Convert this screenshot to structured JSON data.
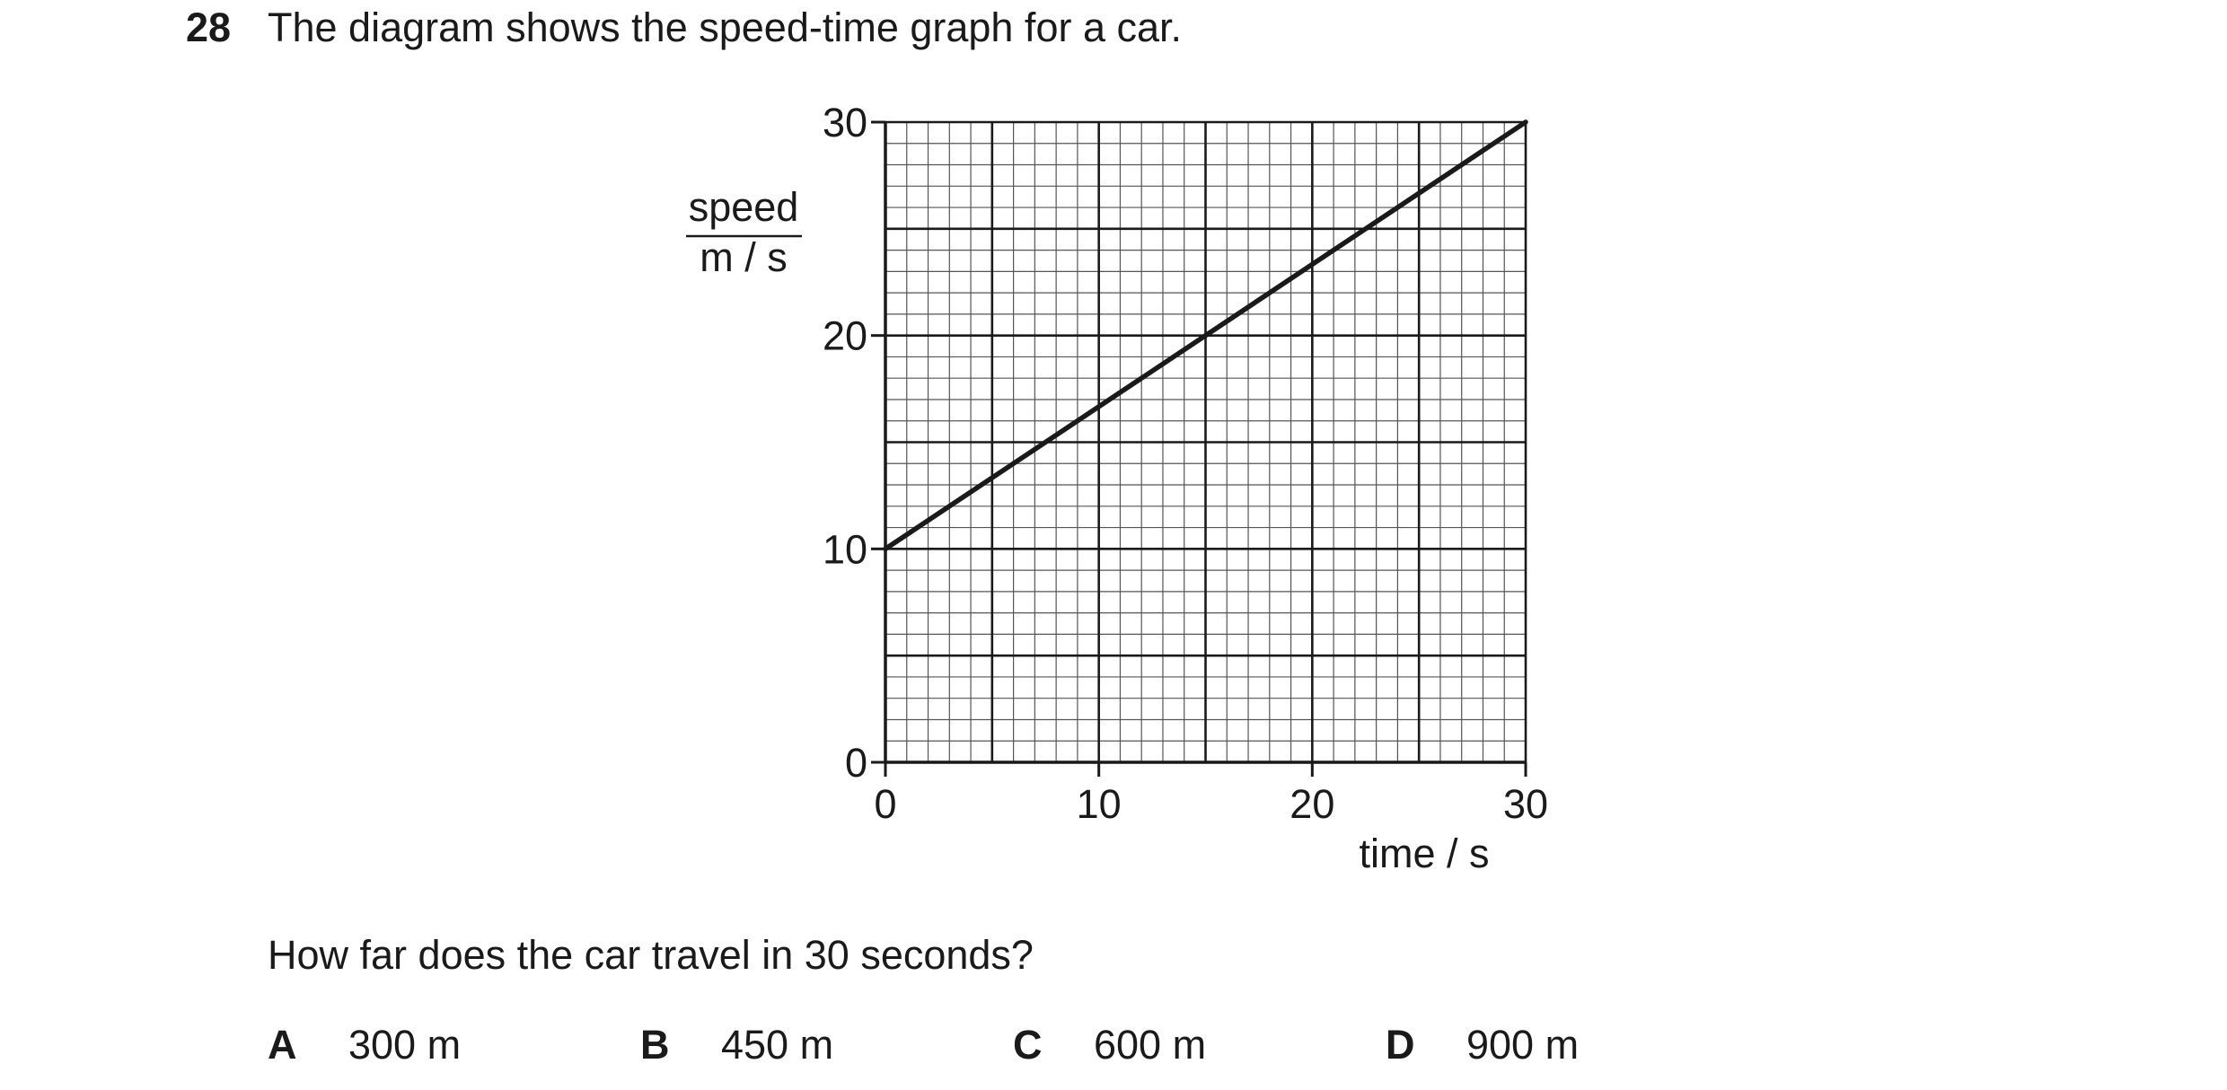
{
  "question": {
    "number": "28",
    "text": "The diagram shows the speed-time graph for a car.",
    "prompt": "How far does the car travel in 30 seconds?"
  },
  "options": [
    {
      "letter": "A",
      "value": "300 m"
    },
    {
      "letter": "B",
      "value": "450 m"
    },
    {
      "letter": "C",
      "value": "600 m"
    },
    {
      "letter": "D",
      "value": "900 m"
    }
  ],
  "chart_data": {
    "type": "line",
    "title": "",
    "xlabel": "time / s",
    "ylabel_top": "speed",
    "ylabel_bottom": "m / s",
    "xlim": [
      0,
      30
    ],
    "ylim": [
      0,
      30
    ],
    "xticks": [
      0,
      10,
      20,
      30
    ],
    "yticks": [
      0,
      10,
      20,
      30
    ],
    "grid": true,
    "grid_major_step": 5,
    "grid_minor_step": 1,
    "series": [
      {
        "x": [
          0,
          30
        ],
        "y": [
          10,
          30
        ]
      }
    ],
    "colors": {
      "line": "#1a1a1a",
      "grid_major": "#1a1a1a",
      "grid_minor": "#555555"
    }
  }
}
